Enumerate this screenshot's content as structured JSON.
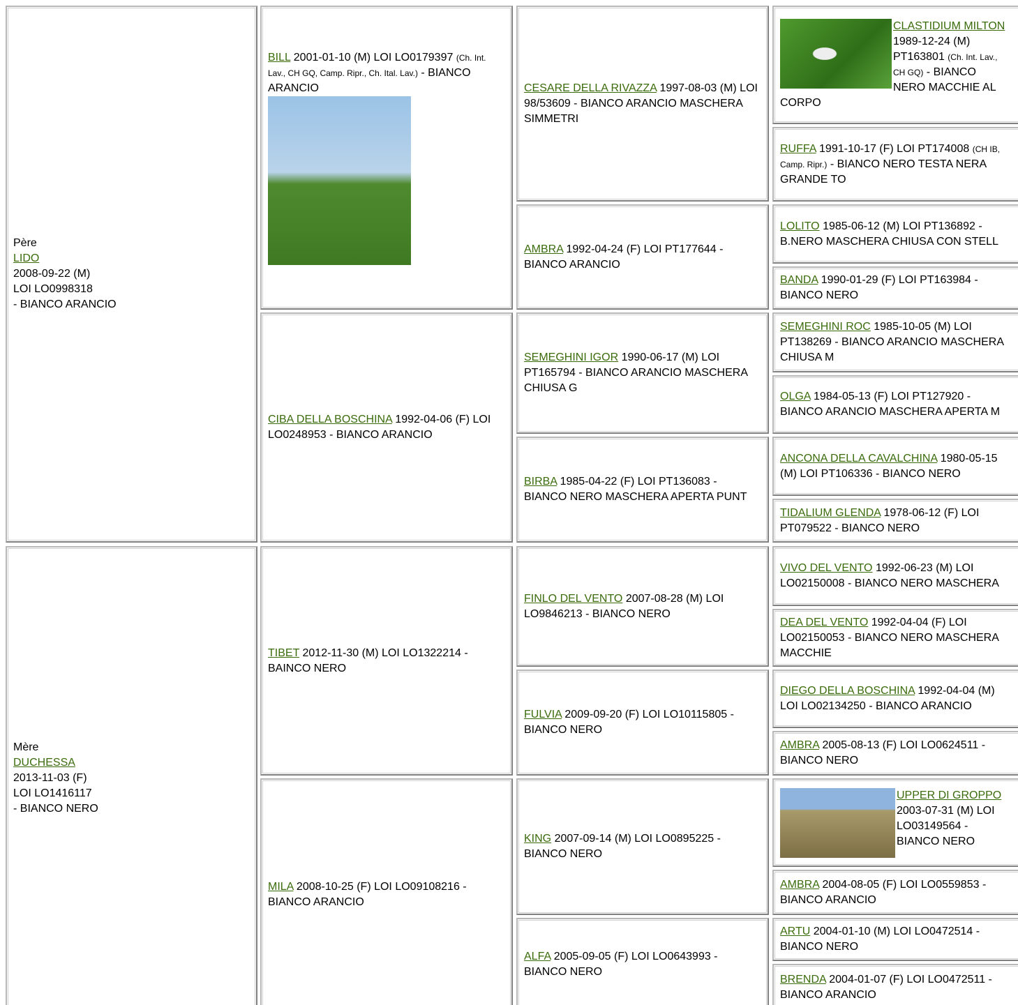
{
  "sire": {
    "label": "Père",
    "name": "LIDO",
    "lines": [
      "2008-09-22 (M)",
      "LOI LO0998318",
      "- BIANCO ARANCIO"
    ]
  },
  "dam": {
    "label": "Mère",
    "name": "DUCHESSA",
    "lines": [
      "2013-11-03 (F)",
      "LOI LO1416117",
      "- BIANCO NERO"
    ]
  },
  "generation2": [
    {
      "name": "BILL",
      "info": "2001-01-10 (M) LOI LO0179397",
      "titles": "(Ch. Int. Lav., CH GQ, Camp. Ripr., Ch. Ital. Lav.)",
      "tail": "- BIANCO ARANCIO"
    },
    {
      "name": "CIBA DELLA BOSCHINA",
      "info": "1992-04-06 (F) LOI LO0248953 - BIANCO ARANCIO"
    },
    {
      "name": "TIBET",
      "info": "2012-11-30 (M) LOI LO1322214 - BAINCO NERO"
    },
    {
      "name": "MILA",
      "info": "2008-10-25 (F) LOI LO09108216 - BIANCO ARANCIO"
    }
  ],
  "generation3": [
    {
      "name": "CESARE DELLA RIVAZZA",
      "info": "1997-08-03 (M) LOI 98/53609 - BIANCO ARANCIO MASCHERA SIMMETRI"
    },
    {
      "name": "AMBRA",
      "info": "1992-04-24 (F) LOI PT177644 - BIANCO ARANCIO"
    },
    {
      "name": "SEMEGHINI IGOR",
      "info": "1990-06-17 (M) LOI PT165794 - BIANCO ARANCIO MASCHERA CHIUSA G"
    },
    {
      "name": "BIRBA",
      "info": "1985-04-22 (F) LOI PT136083 - BIANCO NERO MASCHERA APERTA PUNT"
    },
    {
      "name": "FINLO DEL VENTO",
      "info": "2007-08-28 (M) LOI LO9846213 - BIANCO NERO"
    },
    {
      "name": "FULVIA",
      "info": "2009-09-20 (F) LOI LO10115805 - BIANCO NERO"
    },
    {
      "name": "KING",
      "info": "2007-09-14 (M) LOI LO0895225 - BIANCO NERO"
    },
    {
      "name": "ALFA",
      "info": "2005-09-05 (F) LOI LO0643993 - BIANCO NERO"
    }
  ],
  "generation4": [
    {
      "name": "CLASTIDIUM MILTON",
      "info": "1989-12-24 (M) PT163801",
      "titles": "(Ch. Int. Lav., CH GQ)",
      "tail": "- BIANCO NERO MACCHIE AL CORPO"
    },
    {
      "name": "RUFFA",
      "info": "1991-10-17 (F) LOI PT174008",
      "titles": "(CH IB, Camp. Ripr.)",
      "tail": "- BIANCO NERO TESTA NERA GRANDE TO"
    },
    {
      "name": "LOLITO",
      "info": "1985-06-12 (M) LOI PT136892 - B.NERO MASCHERA CHIUSA CON STELL"
    },
    {
      "name": "BANDA",
      "info": "1990-01-29 (F) LOI PT163984 - BIANCO NERO"
    },
    {
      "name": "SEMEGHINI ROC",
      "info": "1985-10-05 (M) LOI PT138269 - BIANCO ARANCIO MASCHERA CHIUSA M"
    },
    {
      "name": "OLGA",
      "info": "1984-05-13 (F) LOI PT127920 - BIANCO ARANCIO MASCHERA APERTA M"
    },
    {
      "name": "ANCONA DELLA CAVALCHINA",
      "info": "1980-05-15 (M) LOI PT106336 - BIANCO NERO"
    },
    {
      "name": "TIDALIUM GLENDA",
      "info": "1978-06-12 (F) LOI PT079522 - BIANCO NERO"
    },
    {
      "name": "VIVO DEL VENTO",
      "info": "1992-06-23 (M) LOI LO02150008 - BIANCO NERO MASCHERA"
    },
    {
      "name": "DEA DEL VENTO",
      "info": "1992-04-04 (F) LOI LO02150053 - BIANCO NERO MASCHERA MACCHIE"
    },
    {
      "name": "DIEGO DELLA BOSCHINA",
      "info": "1992-04-04 (M) LOI LO02134250 - BIANCO ARANCIO"
    },
    {
      "name": "AMBRA",
      "info": "2005-08-13 (F) LOI LO0624511 - BIANCO NERO"
    },
    {
      "name": "UPPER DI GROPPO",
      "info": "2003-07-31 (M) LOI LO03149564 - BIANCO NERO"
    },
    {
      "name": "AMBRA",
      "info": "2004-08-05 (F) LOI LO0559853 - BIANCO ARANCIO"
    },
    {
      "name": "ARTU",
      "info": "2004-01-10 (M) LOI LO0472514 - BIANCO NERO"
    },
    {
      "name": "BRENDA",
      "info": "2004-01-07 (F) LOI LO0472511 - BIANCO ARANCIO"
    }
  ]
}
